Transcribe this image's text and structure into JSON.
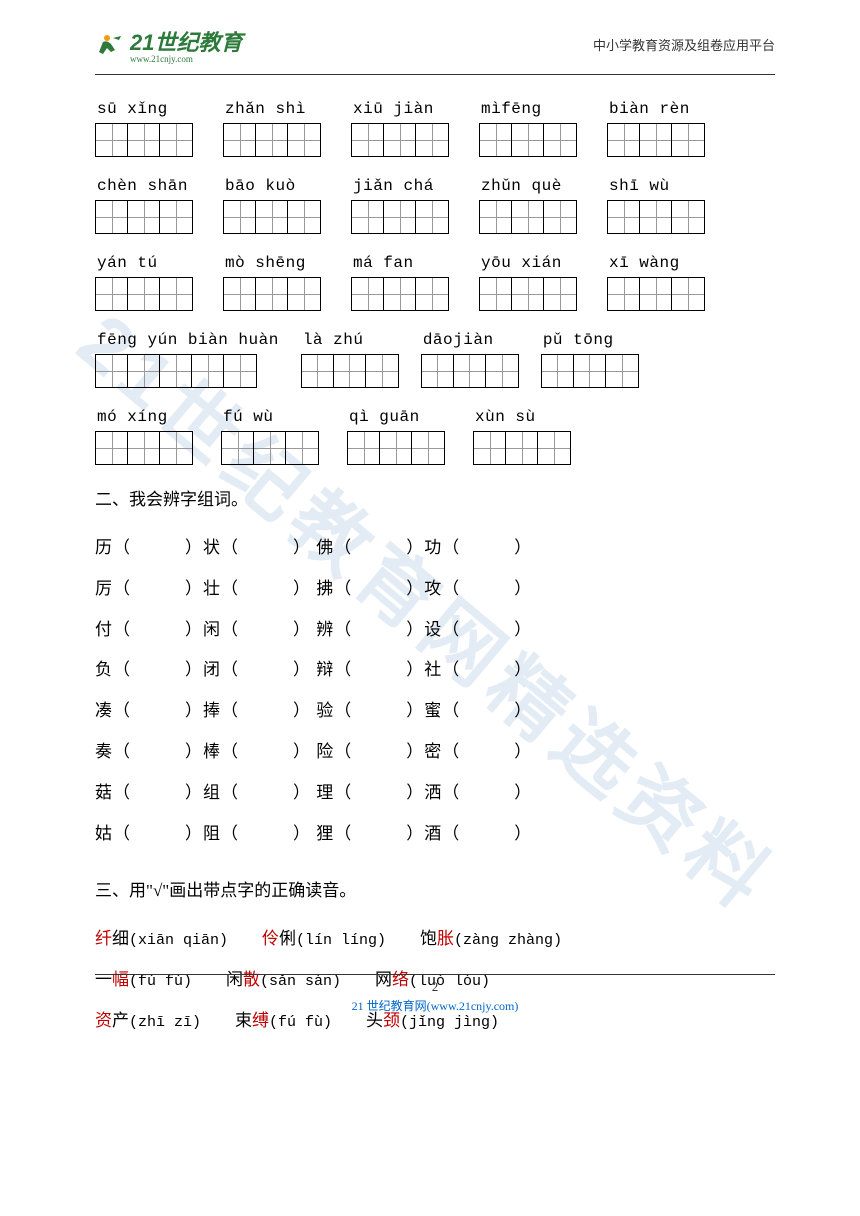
{
  "header": {
    "logo_text": "21世纪教育",
    "logo_url": "www.21cnjy.com",
    "right_text": "中小学教育资源及组卷应用平台"
  },
  "watermark": "21世纪教育网精选资料",
  "pinyin_rows": [
    {
      "items": [
        {
          "label": "sū xǐng",
          "cells": 3
        },
        {
          "label": "zhǎn shì",
          "cells": 3
        },
        {
          "label": "xiū jiàn",
          "cells": 3
        },
        {
          "label": "mìfēng",
          "cells": 3
        },
        {
          "label": "biàn rèn",
          "cells": 3
        }
      ]
    },
    {
      "items": [
        {
          "label": "chèn shān",
          "cells": 3
        },
        {
          "label": "bāo kuò",
          "cells": 3
        },
        {
          "label": "jiǎn chá",
          "cells": 3
        },
        {
          "label": "zhǔn què",
          "cells": 3
        },
        {
          "label": "shī wù",
          "cells": 3
        }
      ]
    },
    {
      "items": [
        {
          "label": "yán tú",
          "cells": 3
        },
        {
          "label": "mò shēng",
          "cells": 3
        },
        {
          "label": "má fan",
          "cells": 3
        },
        {
          "label": "yōu xián",
          "cells": 3
        },
        {
          "label": "xī wàng",
          "cells": 3
        }
      ]
    },
    {
      "class": "row4",
      "items": [
        {
          "label": "fēng yún biàn huàn",
          "cells": 5
        },
        {
          "label": "là zhú",
          "cells": 3
        },
        {
          "label": "dāojiàn",
          "cells": 3
        },
        {
          "label": "pǔ tōng",
          "cells": 3
        }
      ]
    },
    {
      "class": "row5",
      "items": [
        {
          "label": " mó xíng",
          "cells": 3
        },
        {
          "label": "fú wù",
          "cells": 3
        },
        {
          "label": "qì guān",
          "cells": 3
        },
        {
          "label": "xùn sù",
          "cells": 3
        }
      ]
    }
  ],
  "section2": {
    "title": "二、我会辨字组词。",
    "rows": [
      [
        "历（",
        "）状（",
        "）  佛（",
        "）功（",
        "）"
      ],
      [
        "厉（",
        "）壮（",
        "）  拂（",
        "）攻（",
        "）"
      ],
      [
        "付（",
        "）闲（",
        "）  辨（",
        "）设（",
        "）"
      ],
      [
        "负（",
        "）闭（",
        "）  辩（",
        "）社（",
        "）"
      ],
      [
        "凑（",
        "）捧（",
        "）  验（",
        "）蜜（",
        "）"
      ],
      [
        "奏（",
        "）棒（",
        "）  险（",
        "）密（",
        "）"
      ],
      [
        "菇（",
        "）组（",
        "）  理（",
        "）洒（",
        "）"
      ],
      [
        "姑（",
        "）阻（",
        "）  狸（",
        "）酒（",
        "）"
      ]
    ]
  },
  "section3": {
    "title": "三、用\"√\"画出带点字的正确读音。",
    "rows": [
      [
        {
          "red": "纤",
          "black": "细(xiān  qiān)"
        },
        {
          "red": "伶",
          "black": "俐(lín líng)"
        },
        {
          "black": "饱",
          "red": "胀",
          "black2": "(zàng zhàng)"
        }
      ],
      [
        {
          "black": "一",
          "red": "幅",
          "black2": "(fú  fù)"
        },
        {
          "black": "闲",
          "red": "散",
          "black2": "(sǎn sàn)"
        },
        {
          "black": "网",
          "red": "络",
          "black2": "(luò lòu)"
        }
      ],
      [
        {
          "red": "资",
          "black": "产(zhī zī)"
        },
        {
          "black": "束",
          "red": "缚",
          "black2": "(fú fù)"
        },
        {
          "black": "头",
          "red": "颈",
          "black2": "(jǐng  jìng)"
        }
      ]
    ]
  },
  "footer": {
    "page": "2",
    "link": "21 世纪教育网(www.21cnjy.com)"
  }
}
